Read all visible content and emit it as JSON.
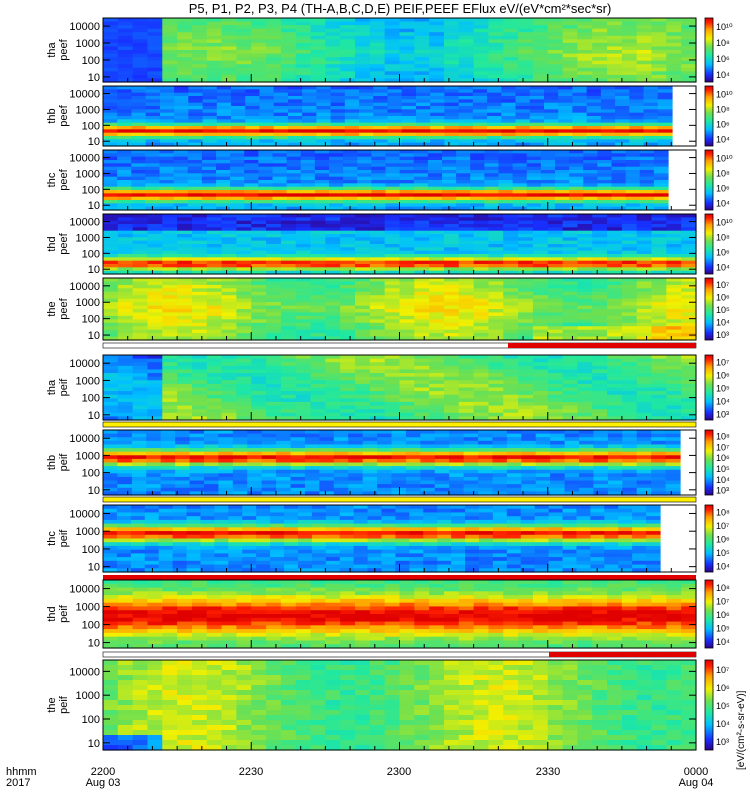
{
  "title": "P5, P1, P2, P3, P4 (TH-A,B,C,D,E) PEIF,PEEF EFlux eV/(eV*cm²*sec*sr)",
  "colorbar_unit_label": "[eV/(cm²-s-sr-eV)]",
  "time_axis": {
    "label_line1": "hhmm",
    "label_line2": "2017",
    "ticks": [
      "2200",
      "2230",
      "2300",
      "2330",
      "0000"
    ],
    "dates": [
      "Aug 03",
      "Aug 04"
    ]
  },
  "chart_data": {
    "type": "heatmap",
    "x": {
      "start": "2017-08-03 22:00",
      "end": "2017-08-04 00:00"
    },
    "y_scale": "log",
    "y_range_eV": [
      5,
      30000
    ],
    "y_tick_labels": [
      "10",
      "100",
      "1000",
      "10000"
    ],
    "panels": [
      {
        "id": "tha_peef",
        "ylabel": [
          "tha",
          "peef"
        ],
        "cbar": [
          "10⁴",
          "10⁶",
          "10⁸",
          "10¹⁰"
        ],
        "status_bar": "none"
      },
      {
        "id": "thb_peef",
        "ylabel": [
          "thb",
          "peef"
        ],
        "cbar": [
          "10⁴",
          "10⁶",
          "10⁸",
          "10¹⁰"
        ],
        "status_bar": "none"
      },
      {
        "id": "thc_peef",
        "ylabel": [
          "thc",
          "peef"
        ],
        "cbar": [
          "10⁴",
          "10⁶",
          "10⁸",
          "10¹⁰"
        ],
        "status_bar": "none"
      },
      {
        "id": "thd_peef",
        "ylabel": [
          "thd",
          "peef"
        ],
        "cbar": [
          "10⁴",
          "10⁶",
          "10⁸",
          "10¹⁰"
        ],
        "status_bar": "none"
      },
      {
        "id": "the_peef",
        "ylabel": [
          "the",
          "peef"
        ],
        "cbar": [
          "10³",
          "10⁴",
          "10⁵",
          "10⁶",
          "10⁷"
        ],
        "status_bar": "partial-red-from-2323"
      },
      {
        "id": "tha_peif",
        "ylabel": [
          "tha",
          "peif"
        ],
        "cbar": [
          "10³",
          "10⁴",
          "10⁵",
          "10⁶",
          "10⁷"
        ],
        "status_bar": "yellow"
      },
      {
        "id": "thb_peif",
        "ylabel": [
          "thb",
          "peif"
        ],
        "cbar": [
          "10³",
          "10⁴",
          "10⁵",
          "10⁶",
          "10⁷",
          "10⁸"
        ],
        "status_bar": "yellow"
      },
      {
        "id": "thc_peif",
        "ylabel": [
          "thc",
          "peif"
        ],
        "cbar": [
          "10⁴",
          "10⁵",
          "10⁶",
          "10⁷",
          "10⁸"
        ],
        "status_bar": "red"
      },
      {
        "id": "thd_peif",
        "ylabel": [
          "thd",
          "peif"
        ],
        "cbar": [
          "10⁴",
          "10⁵",
          "10⁶",
          "10⁷",
          "10⁸"
        ],
        "status_bar": "partial-red-from-2328"
      },
      {
        "id": "the_peif",
        "ylabel": [
          "the",
          "peif"
        ],
        "cbar": [
          "10³",
          "10⁴",
          "10⁵",
          "10⁶",
          "10⁷"
        ],
        "status_bar": "none"
      }
    ]
  }
}
